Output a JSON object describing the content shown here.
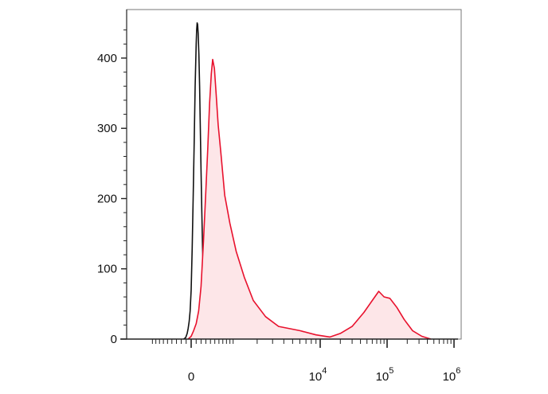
{
  "chart_data": {
    "type": "area",
    "title": "",
    "xlabel": "",
    "ylabel": "",
    "x_scale": "biexponential",
    "ylim": [
      0,
      460
    ],
    "grid": false,
    "y_ticks": [
      {
        "value": 0,
        "label": "0"
      },
      {
        "value": 100,
        "label": "100"
      },
      {
        "value": 200,
        "label": "200"
      },
      {
        "value": 300,
        "label": "300"
      },
      {
        "value": 400,
        "label": "400"
      }
    ],
    "x_ticks": [
      {
        "value": 0,
        "base": "0",
        "exp": ""
      },
      {
        "value": 10000,
        "base": "10",
        "exp": "4"
      },
      {
        "value": 100000,
        "base": "10",
        "exp": "5"
      },
      {
        "value": 1000000,
        "base": "10",
        "exp": "6"
      }
    ],
    "colors": {
      "control": "#111111",
      "stained_line": "#e8112d",
      "stained_fill": "#fde6e8",
      "axis": "#222222",
      "frame": "#777777"
    },
    "series": [
      {
        "color_key": "control",
        "filled": false,
        "points": [
          [
            -150,
            0
          ],
          [
            -110,
            2
          ],
          [
            -80,
            8
          ],
          [
            -60,
            15
          ],
          [
            -40,
            25
          ],
          [
            -20,
            40
          ],
          [
            0,
            70
          ],
          [
            20,
            130
          ],
          [
            40,
            200
          ],
          [
            60,
            280
          ],
          [
            80,
            360
          ],
          [
            100,
            420
          ],
          [
            110,
            440
          ],
          [
            120,
            450
          ],
          [
            130,
            448
          ],
          [
            140,
            435
          ],
          [
            155,
            405
          ],
          [
            170,
            360
          ],
          [
            185,
            300
          ],
          [
            200,
            240
          ],
          [
            215,
            180
          ],
          [
            230,
            130
          ],
          [
            245,
            95
          ],
          [
            260,
            70
          ],
          [
            280,
            50
          ],
          [
            300,
            35
          ],
          [
            330,
            22
          ],
          [
            370,
            10
          ],
          [
            420,
            4
          ],
          [
            480,
            1
          ],
          [
            560,
            0
          ]
        ]
      },
      {
        "color_key": "stained_line",
        "filled": true,
        "points": [
          [
            -60,
            0
          ],
          [
            0,
            4
          ],
          [
            50,
            12
          ],
          [
            100,
            22
          ],
          [
            150,
            40
          ],
          [
            200,
            75
          ],
          [
            250,
            140
          ],
          [
            300,
            210
          ],
          [
            340,
            270
          ],
          [
            380,
            335
          ],
          [
            420,
            378
          ],
          [
            450,
            398
          ],
          [
            490,
            385
          ],
          [
            530,
            350
          ],
          [
            580,
            305
          ],
          [
            650,
            265
          ],
          [
            750,
            205
          ],
          [
            900,
            165
          ],
          [
            1100,
            125
          ],
          [
            1400,
            88
          ],
          [
            1800,
            55
          ],
          [
            2500,
            32
          ],
          [
            3500,
            18
          ],
          [
            6000,
            12
          ],
          [
            9000,
            6
          ],
          [
            14000,
            3
          ],
          [
            20000,
            8
          ],
          [
            30000,
            18
          ],
          [
            45000,
            38
          ],
          [
            60000,
            55
          ],
          [
            75000,
            68
          ],
          [
            90000,
            60
          ],
          [
            110000,
            58
          ],
          [
            140000,
            45
          ],
          [
            180000,
            28
          ],
          [
            240000,
            12
          ],
          [
            330000,
            4
          ],
          [
            450000,
            0
          ]
        ]
      }
    ]
  }
}
